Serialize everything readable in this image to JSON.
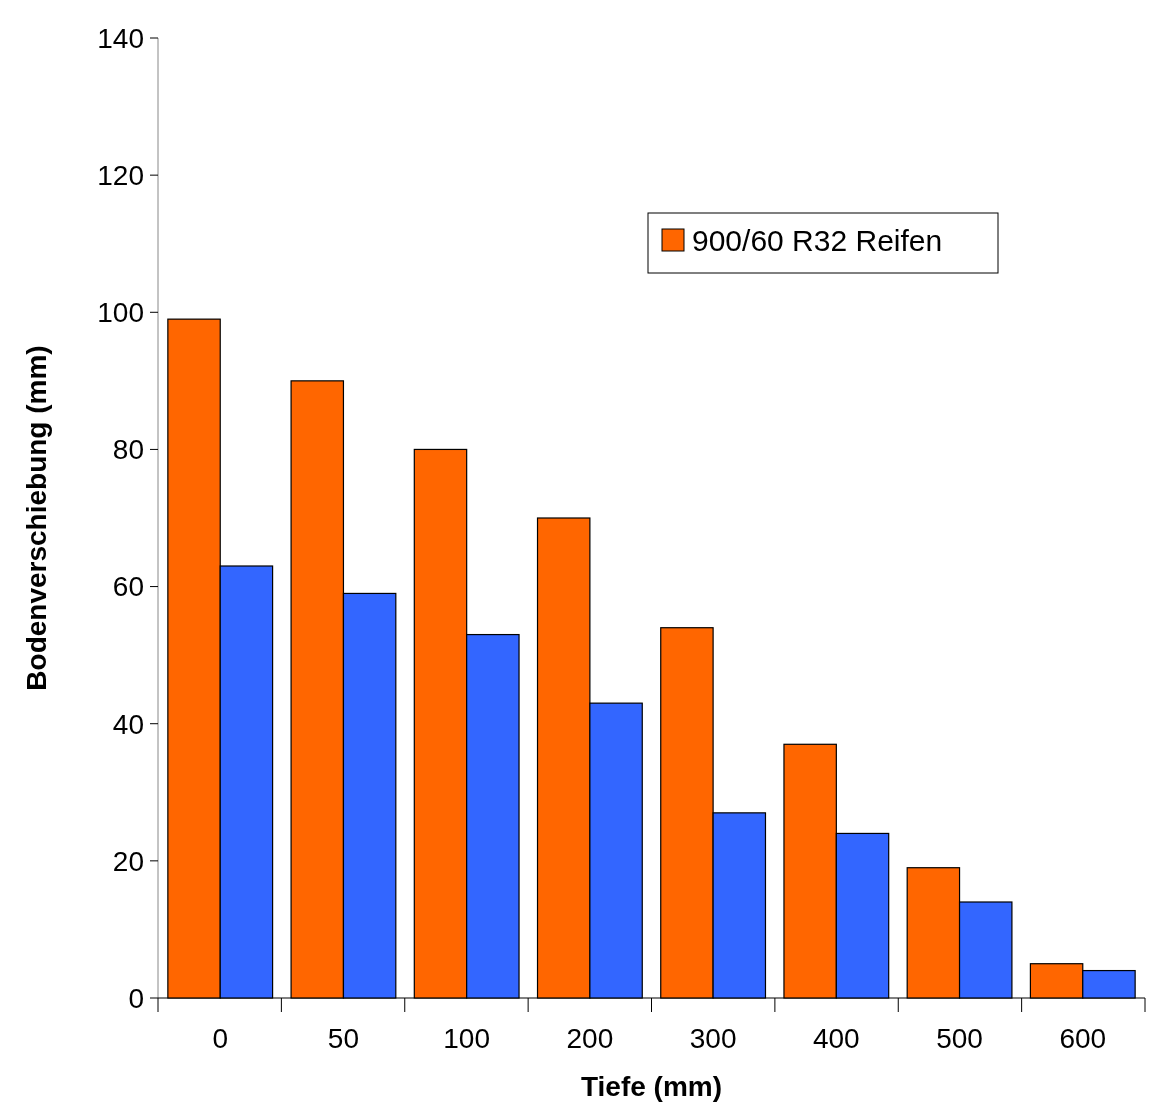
{
  "chart_data": {
    "type": "bar",
    "xlabel": "Tiefe (mm)",
    "ylabel": "Bodenverschiebung (mm)",
    "categories": [
      "0",
      "50",
      "100",
      "200",
      "300",
      "400",
      "500",
      "600"
    ],
    "series": [
      {
        "name": "900/60 R32 Reifen",
        "color": "#ff6600",
        "values": [
          99,
          90,
          80,
          70,
          54,
          37,
          19,
          5
        ]
      },
      {
        "color": "#3366ff",
        "values": [
          63,
          59,
          53,
          43,
          27,
          24,
          14,
          4
        ]
      }
    ],
    "ylim": [
      0,
      140
    ],
    "yticks": [
      0,
      20,
      40,
      60,
      80,
      100,
      120,
      140
    ],
    "grid": false,
    "legend": "top right"
  }
}
